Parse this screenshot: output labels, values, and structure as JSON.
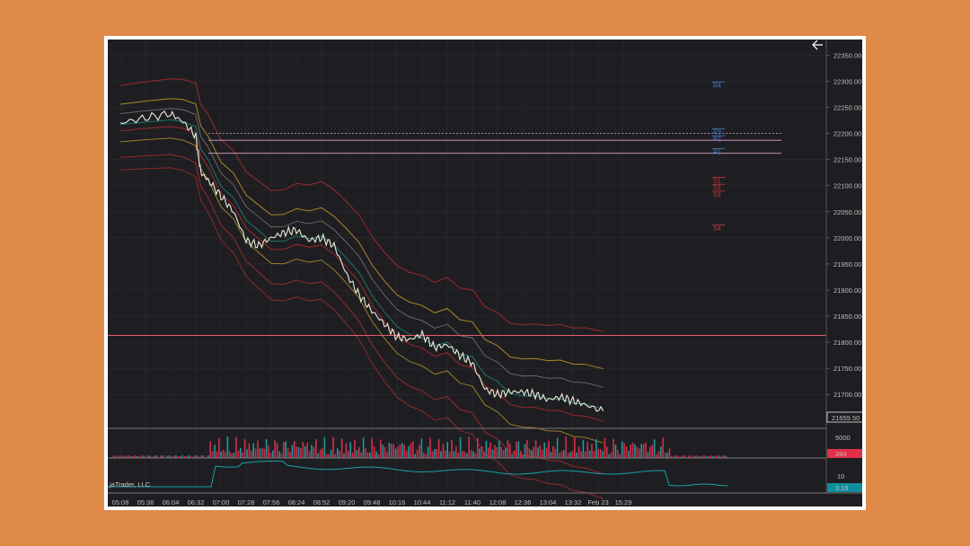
{
  "chart_data": {
    "type": "line",
    "watermark": "jaTrader, LLC",
    "price_axis": {
      "ticks": [
        "22350.00",
        "22300.00",
        "22250.00",
        "22200.00",
        "22150.00",
        "22100.00",
        "22050.00",
        "22000.00",
        "21950.00",
        "21900.00",
        "21850.00",
        "21800.00",
        "21750.00",
        "21700.00"
      ],
      "ylim": [
        21635,
        22380
      ],
      "last_price": "21659.50",
      "last_price_color": "#E8E8E8"
    },
    "time_axis": {
      "labels": [
        "05:08",
        "05:36",
        "06:04",
        "06:32",
        "07:00",
        "07:28",
        "07:56",
        "08:24",
        "08:52",
        "09:20",
        "09:48",
        "10:16",
        "10:44",
        "11:12",
        "11:40",
        "12:08",
        "12:36",
        "13:04",
        "13:32",
        "Feb 23",
        "15:29"
      ]
    },
    "price_series": {
      "name": "",
      "color": "#E8E4D8",
      "x": [
        0,
        1,
        2,
        2.5,
        3,
        3.2,
        3.5,
        4,
        4.5,
        5,
        5.5,
        6,
        6.5,
        7,
        7.5,
        8,
        8.5,
        9,
        9.5,
        10,
        10.5,
        11,
        11.5,
        12,
        12.5,
        13,
        13.5,
        14,
        14.5,
        15,
        15.5,
        16,
        16.5,
        17,
        17.5,
        18,
        18.5,
        19.2
      ],
      "values": [
        22220,
        22230,
        22238,
        22222,
        22195,
        22125,
        22110,
        22080,
        22050,
        21995,
        21985,
        22000,
        22010,
        22015,
        21995,
        22000,
        21985,
        21930,
        21890,
        21860,
        21835,
        21810,
        21805,
        21815,
        21790,
        21795,
        21775,
        21760,
        21710,
        21700,
        21705,
        21705,
        21700,
        21690,
        21695,
        21688,
        21680,
        21668
      ]
    },
    "pivot_levels": [
      {
        "label": "R4",
        "value": 22290,
        "color": "#4A7FD0"
      },
      {
        "label": "R3",
        "value": 22200,
        "color": "#4A7FD0"
      },
      {
        "label": "R2",
        "value": 22187,
        "color": "#4A7FD0"
      },
      {
        "label": "R1",
        "value": 22162,
        "color": "#4A7FD0"
      },
      {
        "label": "S1",
        "value": 22107,
        "color": "#C83C3C"
      },
      {
        "label": "S2",
        "value": 22094,
        "color": "#C83C3C"
      },
      {
        "label": "S3",
        "value": 22081,
        "color": "#C83C3C"
      },
      {
        "label": "S4",
        "value": 22016,
        "color": "#C83C3C"
      }
    ],
    "horizontal_line": {
      "value": 21813,
      "color": "#E45A6E"
    },
    "volume_panel": {
      "tick": "5000",
      "last": "284",
      "last_color": "#E03048"
    },
    "indicator_panel": {
      "tick": "10",
      "last": "3.19",
      "last_color": "#0F8E9E"
    },
    "grid": true
  },
  "icons": {
    "back": "arrow-left-icon"
  }
}
